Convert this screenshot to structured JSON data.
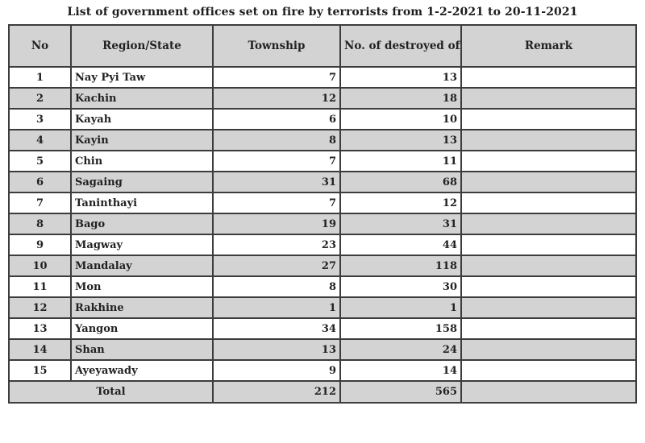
{
  "title": "List of government offices set on fire by terrorists from 1-2-2021 to 20-11-2021",
  "table": {
    "headers": [
      "No",
      "Region/State",
      "Township",
      "No. of destroyed offices",
      "Remark"
    ],
    "rows": [
      {
        "no": "1",
        "region": "Nay Pyi Taw",
        "township": "7",
        "destroyed": "13",
        "remark": ""
      },
      {
        "no": "2",
        "region": "Kachin",
        "township": "12",
        "destroyed": "18",
        "remark": ""
      },
      {
        "no": "3",
        "region": "Kayah",
        "township": "6",
        "destroyed": "10",
        "remark": ""
      },
      {
        "no": "4",
        "region": "Kayin",
        "township": "8",
        "destroyed": "13",
        "remark": ""
      },
      {
        "no": "5",
        "region": "Chin",
        "township": "7",
        "destroyed": "11",
        "remark": ""
      },
      {
        "no": "6",
        "region": "Sagaing",
        "township": "31",
        "destroyed": "68",
        "remark": ""
      },
      {
        "no": "7",
        "region": "Taninthayi",
        "township": "7",
        "destroyed": "12",
        "remark": ""
      },
      {
        "no": "8",
        "region": "Bago",
        "township": "19",
        "destroyed": "31",
        "remark": ""
      },
      {
        "no": "9",
        "region": "Magway",
        "township": "23",
        "destroyed": "44",
        "remark": ""
      },
      {
        "no": "10",
        "region": "Mandalay",
        "township": "27",
        "destroyed": "118",
        "remark": ""
      },
      {
        "no": "11",
        "region": "Mon",
        "township": "8",
        "destroyed": "30",
        "remark": ""
      },
      {
        "no": "12",
        "region": "Rakhine",
        "township": "1",
        "destroyed": "1",
        "remark": ""
      },
      {
        "no": "13",
        "region": "Yangon",
        "township": "34",
        "destroyed": "158",
        "remark": ""
      },
      {
        "no": "14",
        "region": "Shan",
        "township": "13",
        "destroyed": "24",
        "remark": ""
      },
      {
        "no": "15",
        "region": "Ayeyawady",
        "township": "9",
        "destroyed": "14",
        "remark": ""
      }
    ],
    "total": {
      "label": "Total",
      "township": "212",
      "destroyed": "565",
      "remark": ""
    }
  },
  "colors": {
    "row_shade": "#d3d3d3",
    "border": "#3c3c3c",
    "text": "#222222",
    "background": "#ffffff"
  }
}
